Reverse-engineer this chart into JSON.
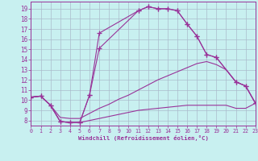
{
  "background_color": "#c8f0f0",
  "line_color": "#993399",
  "grid_color": "#aabbcc",
  "xlabel": "Windchill (Refroidissement éolien,°C)",
  "xlim": [
    0,
    23
  ],
  "ylim": [
    7.5,
    19.7
  ],
  "xticks": [
    0,
    1,
    2,
    3,
    4,
    5,
    6,
    7,
    8,
    9,
    10,
    11,
    12,
    13,
    14,
    15,
    16,
    17,
    18,
    19,
    20,
    21,
    22,
    23
  ],
  "yticks": [
    8,
    9,
    10,
    11,
    12,
    13,
    14,
    15,
    16,
    17,
    18,
    19
  ],
  "curve_upper_x": [
    0,
    1,
    2,
    3,
    4,
    5,
    6,
    7,
    11,
    12,
    13,
    14,
    15,
    16,
    17,
    18,
    19,
    21,
    22,
    23
  ],
  "curve_upper_y": [
    10.3,
    10.4,
    9.5,
    7.9,
    7.8,
    7.8,
    10.5,
    16.6,
    18.8,
    19.2,
    19.0,
    19.0,
    18.8,
    17.5,
    16.3,
    14.5,
    14.2,
    11.8,
    11.4,
    9.7
  ],
  "curve_mid_x": [
    0,
    1,
    2,
    3,
    4,
    5,
    6,
    7,
    11,
    12,
    13,
    14,
    15,
    16,
    17,
    18,
    19,
    21,
    22,
    23
  ],
  "curve_mid_y": [
    10.3,
    10.4,
    9.5,
    7.9,
    7.8,
    7.8,
    10.5,
    15.1,
    18.8,
    19.2,
    19.0,
    19.0,
    18.8,
    17.5,
    16.3,
    14.5,
    14.2,
    11.8,
    11.4,
    9.7
  ],
  "curve_low_x": [
    0,
    1,
    2,
    3,
    4,
    5,
    6,
    7,
    8,
    9,
    10,
    11,
    12,
    13,
    14,
    15,
    16,
    17,
    18,
    19,
    20,
    21,
    22,
    23
  ],
  "curve_low_y": [
    10.3,
    10.4,
    9.5,
    8.3,
    8.2,
    8.2,
    8.7,
    9.2,
    9.6,
    10.1,
    10.5,
    11.0,
    11.5,
    12.0,
    12.4,
    12.8,
    13.2,
    13.6,
    13.8,
    13.5,
    13.0,
    11.8,
    11.4,
    9.7
  ],
  "curve_bot_x": [
    0,
    1,
    2,
    3,
    4,
    5,
    6,
    7,
    8,
    9,
    10,
    11,
    12,
    13,
    14,
    15,
    16,
    17,
    18,
    19,
    20,
    21,
    22,
    23
  ],
  "curve_bot_y": [
    10.3,
    10.4,
    9.5,
    7.9,
    7.8,
    7.8,
    8.0,
    8.2,
    8.4,
    8.6,
    8.8,
    9.0,
    9.1,
    9.2,
    9.3,
    9.4,
    9.5,
    9.5,
    9.5,
    9.5,
    9.5,
    9.2,
    9.2,
    9.7
  ]
}
